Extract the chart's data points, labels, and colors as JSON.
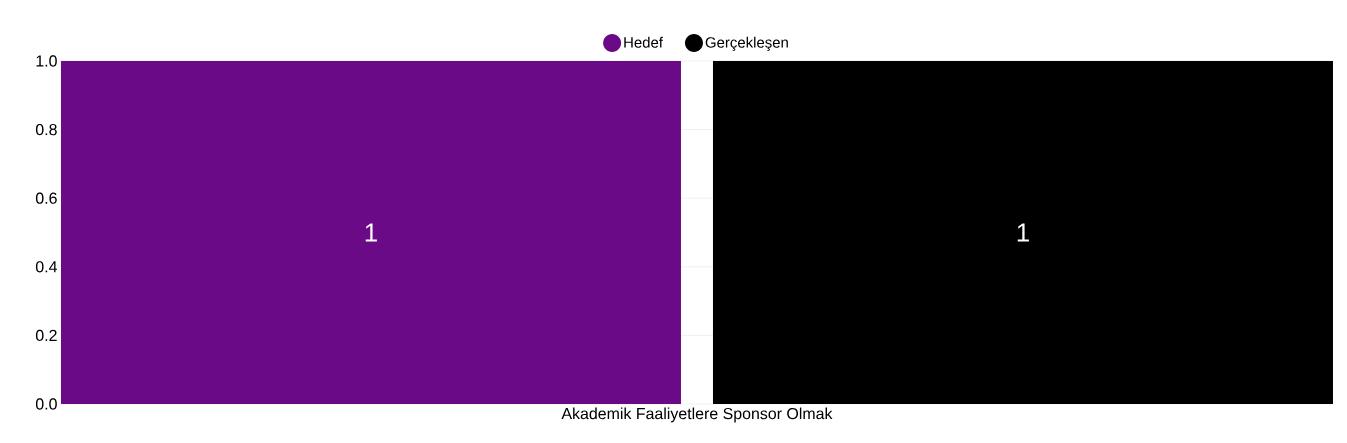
{
  "chart_data": {
    "type": "bar",
    "categories": [
      "Akademik Faaliyetlere Sponsor Olmak"
    ],
    "series": [
      {
        "name": "Hedef",
        "color": "#6b0a86",
        "values": [
          1
        ]
      },
      {
        "name": "Gerçekleşen",
        "color": "#000000",
        "values": [
          1
        ]
      }
    ],
    "ylim": [
      0,
      1
    ],
    "yticks": [
      {
        "value": 0,
        "label": "0.0"
      },
      {
        "value": 0.2,
        "label": "0.2"
      },
      {
        "value": 0.4,
        "label": "0.4"
      },
      {
        "value": 0.6,
        "label": "0.6"
      },
      {
        "value": 0.8,
        "label": "0.8"
      },
      {
        "value": 1,
        "label": "1.0"
      }
    ],
    "grid": "y",
    "legend": "top",
    "data_labels": true
  }
}
